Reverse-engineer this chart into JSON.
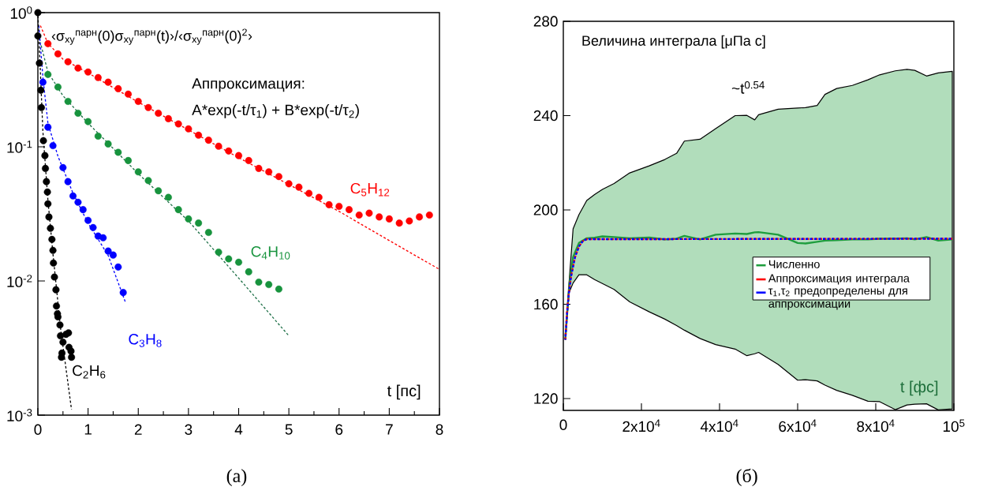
{
  "chart_data": [
    {
      "type": "scatter",
      "xlabel": "t [пс]",
      "ylabel": "‹σ$_{xy}$$^{парн}$(0)σ$_{xy}$$^{парн}$(t)›/‹σ$_{xy}$$^{парн}$(0)$^{2}$›",
      "annotations": [
        "Аппроксимация:",
        "A*exp(-t/τ$_{1}$) + B*exp(-t/τ$_{2}$)",
        "(а)"
      ],
      "xlim": [
        0,
        8
      ],
      "ylim": [
        0.001,
        1
      ],
      "xticks": [
        0,
        1,
        2,
        3,
        4,
        5,
        6,
        7,
        8
      ],
      "yticks": [
        {
          "value": 1,
          "label": "10$^{0}$"
        },
        {
          "value": 0.1,
          "label": "10$^{-1}$"
        },
        {
          "value": 0.01,
          "label": "10$^{-2}$"
        },
        {
          "value": 0.001,
          "label": "10$^{-3}$"
        }
      ],
      "log": "y",
      "legend": false,
      "series": [
        {
          "name": "C$_{5}$H$_{12}$",
          "marker": "circle",
          "color": "#ff0000",
          "x": [
            0.2,
            0.4,
            0.6,
            0.8,
            1.0,
            1.2,
            1.4,
            1.6,
            1.8,
            2.0,
            2.2,
            2.4,
            2.6,
            2.8,
            3.0,
            3.2,
            3.4,
            3.6,
            3.8,
            4.0,
            4.2,
            4.4,
            4.6,
            4.8,
            5.0,
            5.2,
            5.4,
            5.6,
            5.8,
            6.0,
            6.2,
            6.4,
            6.6,
            6.8,
            7.0,
            7.2,
            7.4,
            7.6,
            7.8
          ],
          "values": [
            0.587,
            0.493,
            0.43,
            0.386,
            0.361,
            0.328,
            0.303,
            0.271,
            0.247,
            0.218,
            0.196,
            0.178,
            0.162,
            0.148,
            0.136,
            0.122,
            0.112,
            0.101,
            0.093,
            0.086,
            0.079,
            0.069,
            0.065,
            0.06,
            0.053,
            0.05,
            0.045,
            0.042,
            0.037,
            0.036,
            0.034,
            0.031,
            0.032,
            0.03,
            0.029,
            0.027,
            0.028,
            0.03,
            0.031
          ]
        },
        {
          "type": "line",
          "marker": "none",
          "line_style": "dashed",
          "color": "#ff0000",
          "x": [
            0.05,
            0.2,
            0.5,
            1,
            2,
            4,
            6,
            7,
            8
          ],
          "values": [
            0.8,
            0.59,
            0.45,
            0.355,
            0.215,
            0.083,
            0.033,
            0.02,
            0.0122
          ]
        },
        {
          "name": "C$_{4}$H$_{10}$",
          "marker": "circle",
          "color": "#17933d",
          "x": [
            0.2,
            0.4,
            0.6,
            0.8,
            1.0,
            1.2,
            1.4,
            1.6,
            1.8,
            2.0,
            2.2,
            2.4,
            2.6,
            2.8,
            3.0,
            3.2,
            3.4,
            3.6,
            3.8,
            4.0,
            4.2,
            4.4,
            4.6,
            4.8
          ],
          "values": [
            0.346,
            0.279,
            0.218,
            0.178,
            0.154,
            0.12,
            0.105,
            0.091,
            0.079,
            0.065,
            0.056,
            0.047,
            0.042,
            0.034,
            0.029,
            0.027,
            0.023,
            0.0164,
            0.0146,
            0.0138,
            0.0117,
            0.0098,
            0.0094,
            0.0087
          ]
        },
        {
          "type": "line",
          "marker": "none",
          "line_style": "dashed",
          "color": "#1b6e45",
          "x": [
            0.05,
            0.2,
            0.5,
            1,
            2,
            3,
            4,
            5
          ],
          "values": [
            0.6,
            0.36,
            0.24,
            0.15,
            0.063,
            0.028,
            0.0105,
            0.0039
          ]
        },
        {
          "name": "C$_{3}$H$_{8}$",
          "marker": "circle",
          "color": "#0000ff",
          "x": [
            0.1,
            0.2,
            0.3,
            0.5,
            0.6,
            0.7,
            0.8,
            0.9,
            1.0,
            1.1,
            1.2,
            1.3,
            1.4,
            1.5,
            1.6,
            1.7
          ],
          "values": [
            0.303,
            0.14,
            0.102,
            0.07,
            0.055,
            0.043,
            0.0386,
            0.034,
            0.0283,
            0.025,
            0.0216,
            0.021,
            0.0167,
            0.0156,
            0.0127,
            0.0082
          ]
        },
        {
          "type": "line",
          "marker": "none",
          "line_style": "dashed",
          "color": "#0000ff",
          "x": [
            0.02,
            0.1,
            0.2,
            0.4,
            0.7,
            1.0,
            1.4,
            1.74
          ],
          "values": [
            0.8,
            0.33,
            0.15,
            0.085,
            0.045,
            0.027,
            0.0155,
            0.007
          ]
        },
        {
          "name": "C$_{2}$H$_{6}$",
          "marker": "circle",
          "color": "#000000",
          "x": [
            0,
            0.0,
            0.03,
            0.06,
            0.07,
            0.11,
            0.14,
            0.15,
            0.17,
            0.19,
            0.2,
            0.22,
            0.25,
            0.28,
            0.3,
            0.31,
            0.33,
            0.36,
            0.37,
            0.39,
            0.4,
            0.44,
            0.45,
            0.5,
            0.48,
            0.47,
            0.56,
            0.61,
            0.62,
            0.66,
            0.67
          ],
          "values": [
            1.0,
            0.67,
            0.42,
            0.264,
            0.196,
            0.111,
            0.086,
            0.069,
            0.055,
            0.046,
            0.0376,
            0.03,
            0.0247,
            0.0204,
            0.0169,
            0.0136,
            0.0107,
            0.0086,
            0.0065,
            0.0057,
            0.0054,
            0.0047,
            0.0039,
            0.0035,
            0.0029,
            0.0027,
            0.004,
            0.0041,
            0.0032,
            0.003,
            0.0027
          ]
        },
        {
          "type": "line",
          "marker": "none",
          "line_style": "dashed",
          "color": "#000000",
          "x": [
            0,
            0.1,
            0.2,
            0.3,
            0.45,
            0.67
          ],
          "values": [
            1.0,
            0.13,
            0.04,
            0.016,
            0.0045,
            0.0011
          ]
        }
      ]
    },
    {
      "type": "line",
      "xlabel": "t [фс]",
      "ylabel": "Величина интеграла [μПа с]",
      "annotations": [
        "~t$^{0.54}$",
        "(б)"
      ],
      "xlim": [
        0,
        100000
      ],
      "ylim": [
        115,
        280
      ],
      "xticks": [
        0,
        {
          "value": 20000,
          "label": "2x10$^{4}$"
        },
        {
          "value": 40000,
          "label": "4x10$^{4}$"
        },
        {
          "value": 60000,
          "label": "6x10$^{4}$"
        },
        {
          "value": 80000,
          "label": "8x10$^{4}$"
        },
        {
          "value": 100000,
          "label": "10$^{5}$"
        }
      ],
      "yticks": [
        120,
        160,
        200,
        240,
        280
      ],
      "legend": "right",
      "series": [
        {
          "name": "Численно",
          "color": "#1f9e3e",
          "x": [
            500,
            1500,
            2500,
            4000,
            6000,
            8000,
            10000,
            13000,
            17000,
            22000,
            26000,
            29000,
            31000,
            35000,
            39000,
            44000,
            47000,
            49000,
            50000,
            55000,
            60000,
            62000,
            65000,
            67000,
            70000,
            74000,
            78000,
            81000,
            85000,
            88000,
            90000,
            93000,
            96000,
            99600
          ],
          "values": [
            145,
            168,
            180,
            186,
            188,
            188.2,
            188.8,
            188.5,
            188,
            188.3,
            187.5,
            187.8,
            189,
            187.5,
            189.5,
            190,
            189.8,
            190.5,
            190.6,
            189.5,
            186,
            185.8,
            186.5,
            187,
            187.2,
            187.5,
            187.5,
            187.8,
            187.8,
            188,
            187.5,
            188.5,
            187,
            187.5
          ],
          "upper": [
            145,
            170,
            192,
            198,
            204,
            206.5,
            208.7,
            211.2,
            215.7,
            218.7,
            221.4,
            224,
            229.2,
            230,
            234.5,
            240,
            240.1,
            238.2,
            240.4,
            242.7,
            243.2,
            243.4,
            244.3,
            249,
            251.5,
            252.8,
            255.2,
            257.3,
            259,
            259.6,
            259.2,
            256.8,
            258.1,
            258.8
          ],
          "lower": [
            145,
            165,
            169,
            172.5,
            172.5,
            170.5,
            168.8,
            166.3,
            161,
            156.8,
            153.7,
            151,
            149,
            145.5,
            142.9,
            141,
            138.2,
            139,
            139.6,
            134.5,
            127.8,
            128,
            127.5,
            125.7,
            123.5,
            121.4,
            118.9,
            118.7,
            115.3,
            117.3,
            117.6,
            117.8,
            115.2,
            115.6
          ]
        },
        {
          "name": "Аппроксимация интеграла",
          "line_style": "dashed",
          "color": "#ff0000",
          "x": [
            500,
            1000,
            1500,
            2000,
            3000,
            4000,
            5000,
            6000,
            99600
          ],
          "values": [
            145,
            158,
            166,
            172,
            180,
            184.5,
            186.8,
            187.6,
            187.8
          ]
        },
        {
          "name": "τ$_{1}$,τ$_{2}$ предопределены для аппроксимации",
          "line_style": "dashed",
          "color": "#0000ff",
          "x": [
            500,
            1000,
            1500,
            2000,
            3000,
            4000,
            5000,
            6000,
            99600
          ],
          "values": [
            145,
            157,
            166,
            172,
            180,
            184.5,
            186.8,
            187.6,
            187.8
          ]
        }
      ]
    }
  ]
}
